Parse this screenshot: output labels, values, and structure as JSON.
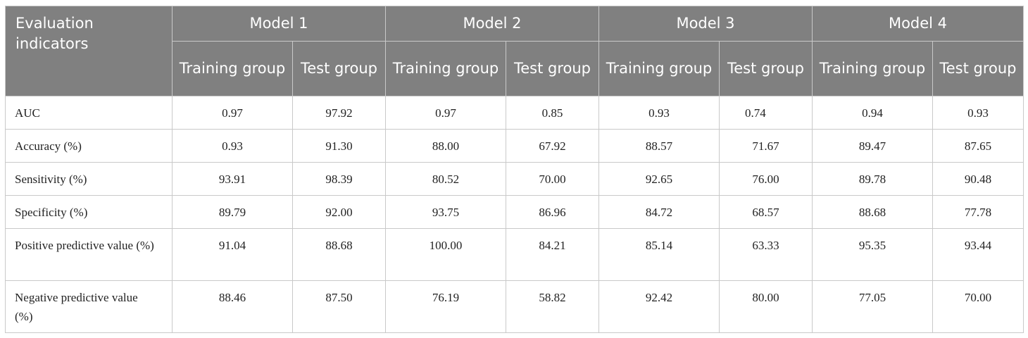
{
  "table": {
    "corner_header": "Evaluation indicators",
    "models": [
      "Model 1",
      "Model 2",
      "Model 3",
      "Model 4"
    ],
    "subheaders": [
      "Training group",
      "Test group",
      "Training group",
      "Test group",
      "Training group",
      "Test group",
      "Training group",
      "Test group"
    ],
    "rows": [
      {
        "label": "AUC",
        "values": [
          "0.97",
          "97.92",
          "0.97",
          "0.85",
          "0.93",
          "0.74",
          "0.94",
          "0.93"
        ]
      },
      {
        "label": "Accuracy (%)",
        "values": [
          "0.93",
          "91.30",
          "88.00",
          "67.92",
          "88.57",
          "71.67",
          "89.47",
          "87.65"
        ]
      },
      {
        "label": "Sensitivity (%)",
        "values": [
          "93.91",
          "98.39",
          "80.52",
          "70.00",
          "92.65",
          "76.00",
          "89.78",
          "90.48"
        ]
      },
      {
        "label": "Specificity (%)",
        "values": [
          "89.79",
          "92.00",
          "93.75",
          "86.96",
          "84.72",
          "68.57",
          "88.68",
          "77.78"
        ]
      },
      {
        "label": "Positive predictive value (%)",
        "values": [
          "91.04",
          "88.68",
          "100.00",
          "84.21",
          "85.14",
          "63.33",
          "95.35",
          "93.44"
        ]
      },
      {
        "label": "Negative predictive value (%)",
        "values": [
          "88.46",
          "87.50",
          "76.19",
          "58.82",
          "92.42",
          "80.00",
          "77.05",
          "70.00"
        ]
      }
    ],
    "colors": {
      "header_bg": "#808080",
      "header_text": "#ffffff",
      "grid_line": "#c9c9c9",
      "body_text": "#222222"
    }
  }
}
